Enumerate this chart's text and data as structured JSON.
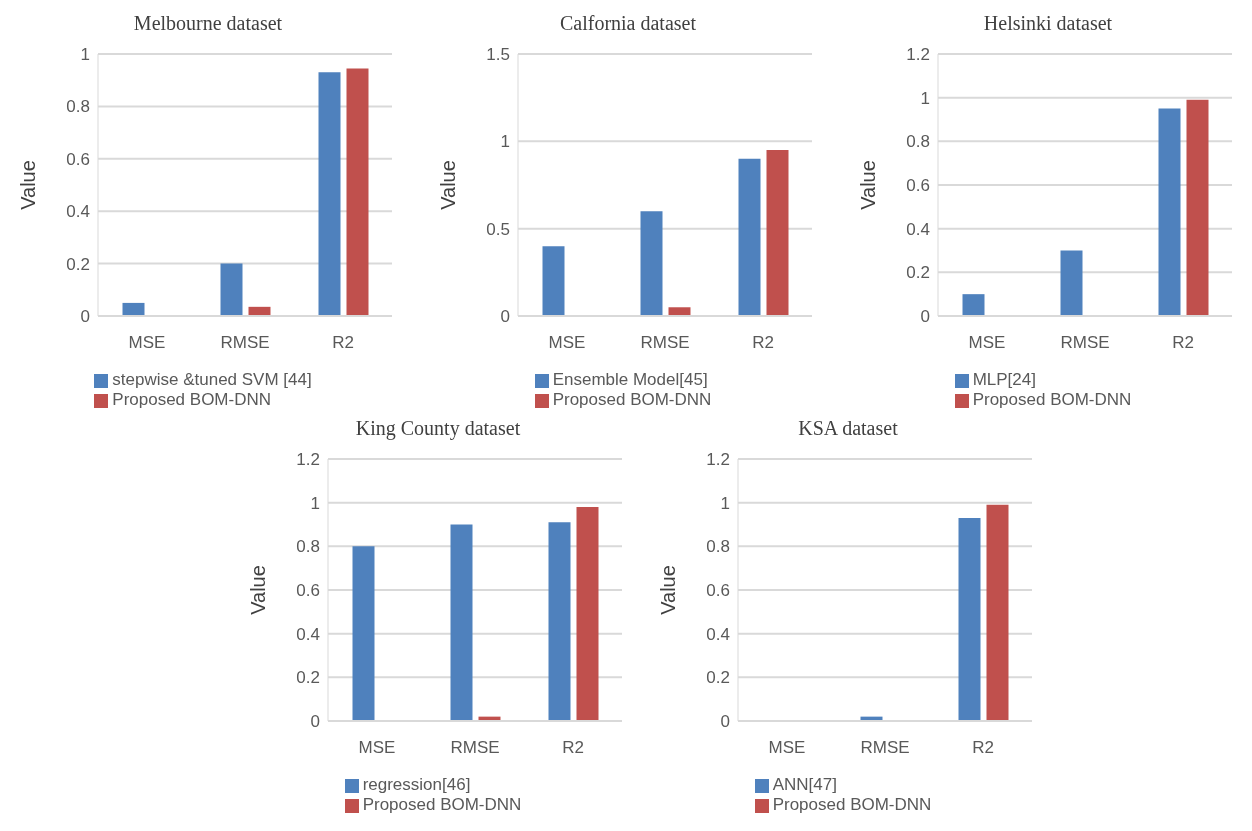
{
  "chart_data": [
    {
      "type": "bar",
      "title": "Melbourne dataset",
      "ylabel": "Value",
      "categories": [
        "MSE",
        "RMSE",
        "R2"
      ],
      "ylim": [
        0,
        1
      ],
      "yticks": [
        0,
        0.2,
        0.4,
        0.6,
        0.8,
        1
      ],
      "grid": "y",
      "legend": "bottom",
      "series": [
        {
          "name": "stepwise &tuned SVM [44]",
          "color": "#4f81bd",
          "values": [
            0.05,
            0.2,
            0.93
          ]
        },
        {
          "name": "Proposed BOM-DNN",
          "color": "#c0504d",
          "values": [
            0,
            0.035,
            0.945
          ]
        }
      ]
    },
    {
      "type": "bar",
      "title": "Calfornia dataset",
      "ylabel": "Value",
      "categories": [
        "MSE",
        "RMSE",
        "R2"
      ],
      "ylim": [
        0,
        1.5
      ],
      "yticks": [
        0,
        0.5,
        1,
        1.5
      ],
      "grid": "y",
      "legend": "bottom",
      "series": [
        {
          "name": "Ensemble Model[45]",
          "color": "#4f81bd",
          "values": [
            0.4,
            0.6,
            0.9
          ]
        },
        {
          "name": "Proposed BOM-DNN",
          "color": "#c0504d",
          "values": [
            0,
            0.05,
            0.95
          ]
        }
      ]
    },
    {
      "type": "bar",
      "title": "Helsinki dataset",
      "ylabel": "Value",
      "categories": [
        "MSE",
        "RMSE",
        "R2"
      ],
      "ylim": [
        0,
        1.2
      ],
      "yticks": [
        0,
        0.2,
        0.4,
        0.6,
        0.8,
        1,
        1.2
      ],
      "grid": "y",
      "legend": "bottom",
      "series": [
        {
          "name": "MLP[24]",
          "color": "#4f81bd",
          "values": [
            0.1,
            0.3,
            0.95
          ]
        },
        {
          "name": "Proposed BOM-DNN",
          "color": "#c0504d",
          "values": [
            0,
            0,
            0.99
          ]
        }
      ]
    },
    {
      "type": "bar",
      "title": "King County dataset",
      "ylabel": "Value",
      "categories": [
        "MSE",
        "RMSE",
        "R2"
      ],
      "ylim": [
        0,
        1.2
      ],
      "yticks": [
        0,
        0.2,
        0.4,
        0.6,
        0.8,
        1,
        1.2
      ],
      "grid": "y",
      "legend": "bottom",
      "series": [
        {
          "name": "regression[46]",
          "color": "#4f81bd",
          "values": [
            0.8,
            0.9,
            0.91
          ]
        },
        {
          "name": "Proposed BOM-DNN",
          "color": "#c0504d",
          "values": [
            0,
            0.02,
            0.98
          ]
        }
      ]
    },
    {
      "type": "bar",
      "title": "KSA dataset",
      "ylabel": "Value",
      "categories": [
        "MSE",
        "RMSE",
        "R2"
      ],
      "ylim": [
        0,
        1.2
      ],
      "yticks": [
        0,
        0.2,
        0.4,
        0.6,
        0.8,
        1,
        1.2
      ],
      "grid": "y",
      "legend": "bottom",
      "series": [
        {
          "name": "ANN[47]",
          "color": "#4f81bd",
          "values": [
            0,
            0.02,
            0.93
          ]
        },
        {
          "name": "Proposed BOM-DNN",
          "color": "#c0504d",
          "values": [
            0,
            0,
            0.99
          ]
        }
      ]
    }
  ]
}
